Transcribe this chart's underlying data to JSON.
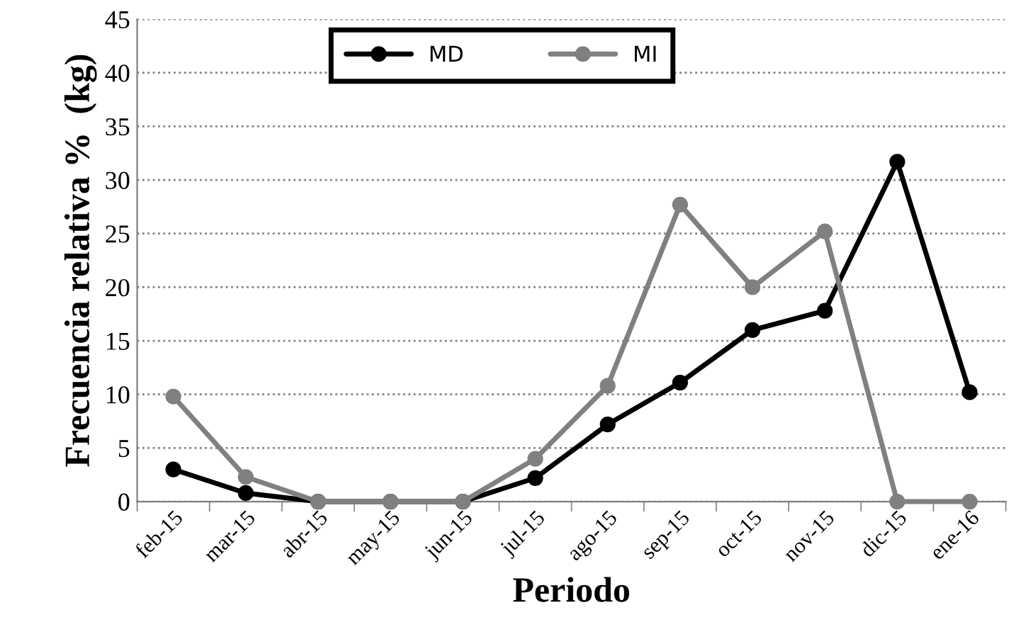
{
  "chart_data": {
    "type": "line",
    "xlabel": "Periodo",
    "ylabel": "Frecuencia relativa %  (kg)",
    "categories": [
      "feb-15",
      "mar-15",
      "abr-15",
      "may-15",
      "jun-15",
      "jul-15",
      "ago-15",
      "sep-15",
      "oct-15",
      "nov-15",
      "dic-15",
      "ene-16"
    ],
    "series": [
      {
        "name": "MD",
        "color": "#000000",
        "values": [
          3,
          0.8,
          0,
          0,
          0,
          2.2,
          7.2,
          11.1,
          16,
          17.8,
          31.7,
          10.2
        ]
      },
      {
        "name": "MI",
        "color": "#808080",
        "values": [
          9.8,
          2.3,
          0,
          0,
          0,
          4,
          10.8,
          27.7,
          20,
          25.2,
          0,
          0
        ]
      }
    ],
    "ylim": [
      0,
      45
    ],
    "yticks": [
      0,
      5,
      10,
      15,
      20,
      25,
      30,
      35,
      40,
      45
    ],
    "grid": "y",
    "legend": "top",
    "marker": "circle",
    "line_style": "solid"
  }
}
